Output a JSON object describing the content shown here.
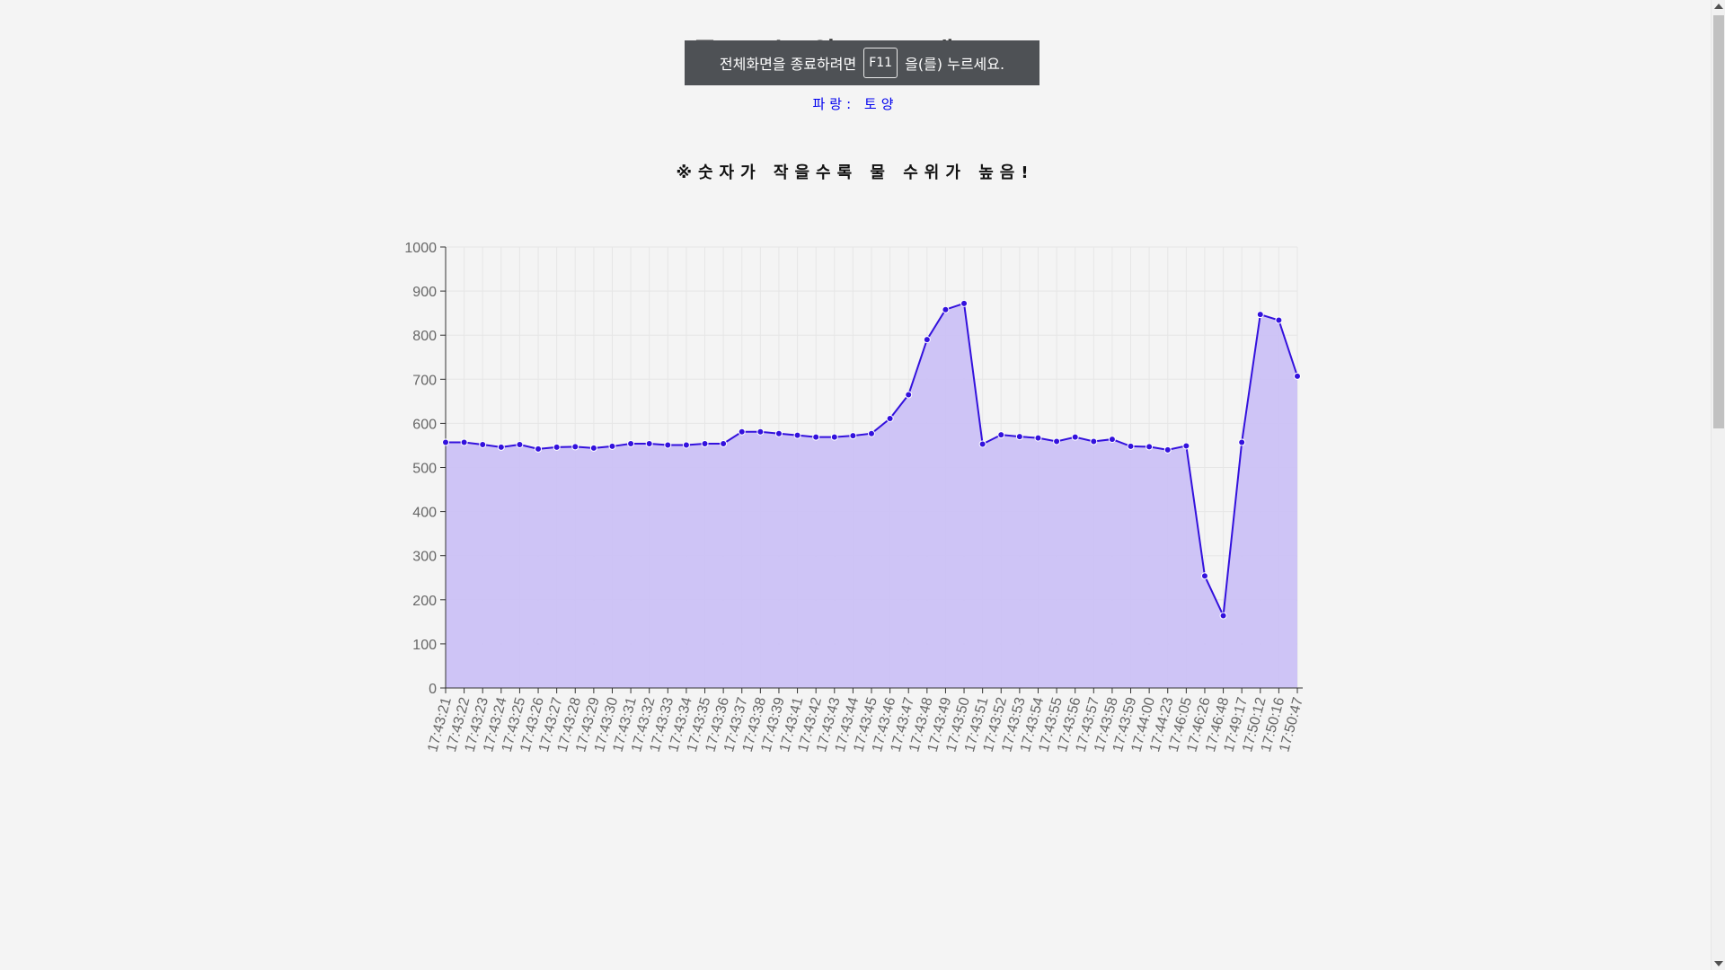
{
  "page": {
    "title": "물 수위 그래프",
    "legend_text": "파랑: 토양",
    "note_text": "※숫자가 작을수록 물 수위가 높음!"
  },
  "fullscreen_notice": {
    "before": "전체화면을 종료하려면",
    "key": "F11",
    "after": "을(를) 누르세요."
  },
  "colors": {
    "line": "#3311dd",
    "fill": "#cbc1f5",
    "point": "#3311dd",
    "grid": "#e6e6e6",
    "axis": "#333333"
  },
  "chart_data": {
    "type": "area",
    "ylim": [
      0,
      1000
    ],
    "y_ticks": [
      0,
      100,
      200,
      300,
      400,
      500,
      600,
      700,
      800,
      900,
      1000
    ],
    "grid": true,
    "categories": [
      "17:43:21",
      "17:43:22",
      "17:43:23",
      "17:43:24",
      "17:43:25",
      "17:43:26",
      "17:43:27",
      "17:43:28",
      "17:43:29",
      "17:43:30",
      "17:43:31",
      "17:43:32",
      "17:43:33",
      "17:43:34",
      "17:43:35",
      "17:43:36",
      "17:43:37",
      "17:43:38",
      "17:43:39",
      "17:43:41",
      "17:43:42",
      "17:43:43",
      "17:43:44",
      "17:43:45",
      "17:43:46",
      "17:43:47",
      "17:43:48",
      "17:43:49",
      "17:43:50",
      "17:43:51",
      "17:43:52",
      "17:43:53",
      "17:43:54",
      "17:43:55",
      "17:43:56",
      "17:43:57",
      "17:43:58",
      "17:43:59",
      "17:44:00",
      "17:44:23",
      "17:46:05",
      "17:46:26",
      "17:46:48",
      "17:49:17",
      "17:50:12",
      "17:50:16",
      "17:50:47"
    ],
    "values": [
      557,
      557,
      552,
      546,
      552,
      542,
      546,
      547,
      544,
      548,
      554,
      554,
      551,
      551,
      554,
      554,
      581,
      581,
      577,
      573,
      569,
      569,
      572,
      577,
      611,
      665,
      790,
      858,
      872,
      553,
      574,
      570,
      567,
      559,
      569,
      559,
      564,
      548,
      547,
      540,
      549,
      254,
      164,
      557,
      847,
      834,
      707
    ]
  }
}
